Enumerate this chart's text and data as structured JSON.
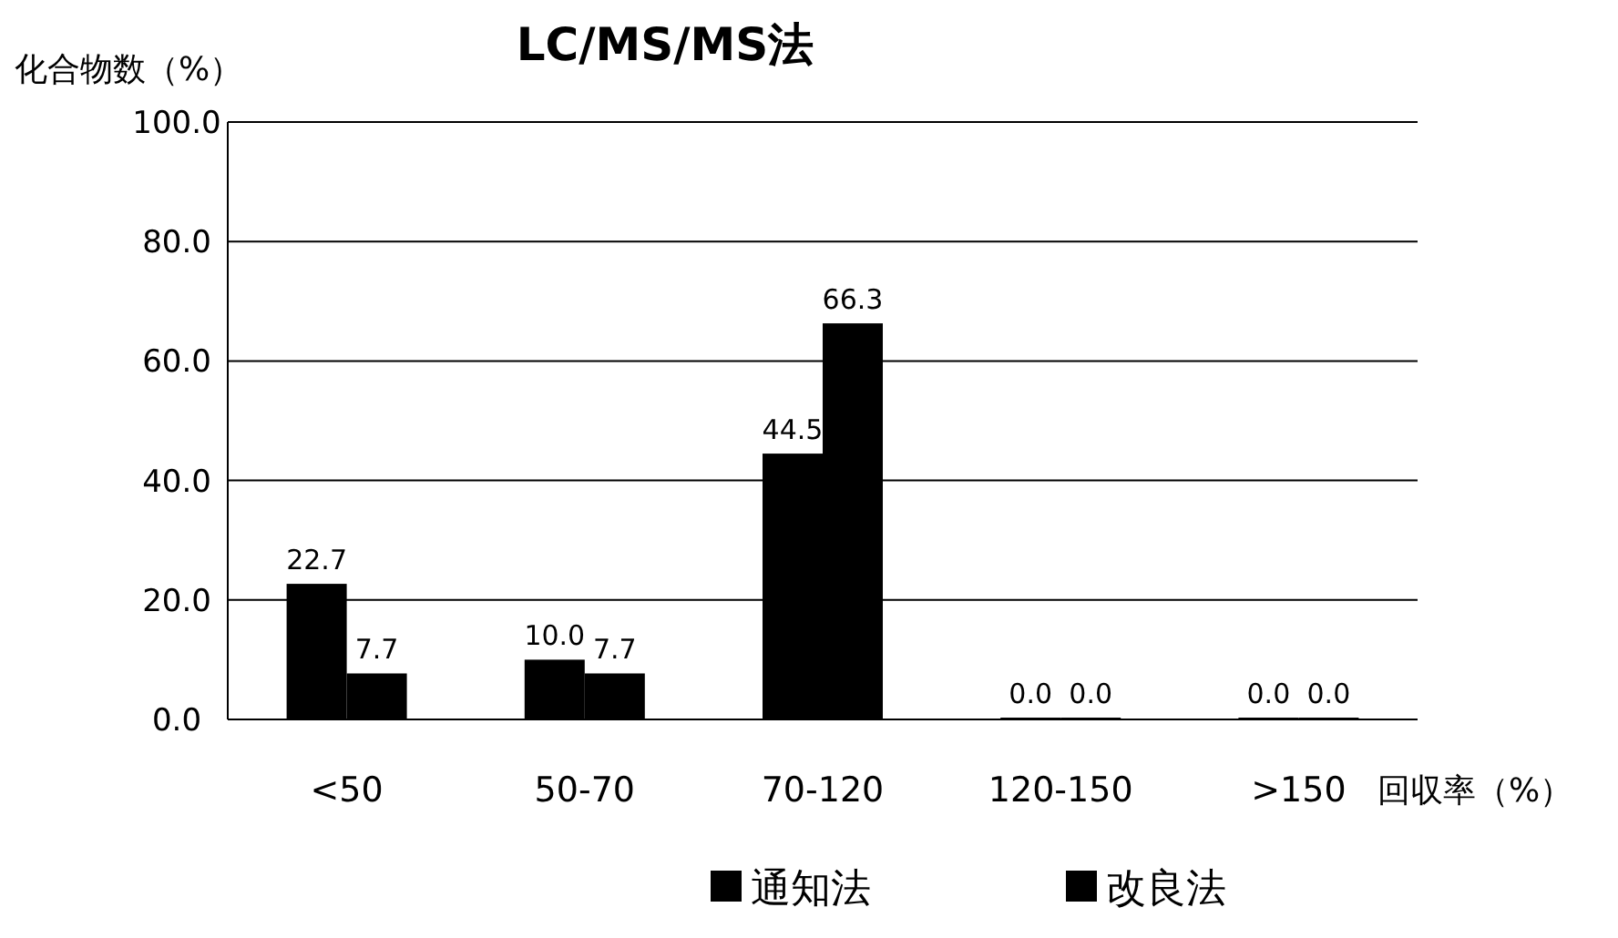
{
  "chart_data": {
    "type": "bar",
    "title": "LC/MS/MS法",
    "ylabel": "化合物数（%）",
    "xlabel": "回収率（%）",
    "categories": [
      "<50",
      "50-70",
      "70-120",
      "120-150",
      ">150"
    ],
    "series": [
      {
        "name": "通知法",
        "color": "#000000",
        "values": [
          22.7,
          10.0,
          44.5,
          0.0,
          0.0
        ],
        "value_labels": [
          "22.7",
          "10.0",
          "44.5",
          "0.0",
          "0.0"
        ]
      },
      {
        "name": "改良法",
        "color": "#000000",
        "values": [
          7.7,
          7.7,
          66.3,
          0.0,
          0.0
        ],
        "value_labels": [
          "7.7",
          "7.7",
          "66.3",
          "0.0",
          "0.0"
        ]
      }
    ],
    "ylim": [
      0,
      100
    ],
    "yticks": [
      {
        "value": 0,
        "label": "0.0"
      },
      {
        "value": 20,
        "label": "20.0"
      },
      {
        "value": 40,
        "label": "40.0"
      },
      {
        "value": 60,
        "label": "60.0"
      },
      {
        "value": 80,
        "label": "80.0"
      },
      {
        "value": 100,
        "label": "100.0"
      }
    ],
    "grid": "y",
    "legend": "bottom"
  }
}
